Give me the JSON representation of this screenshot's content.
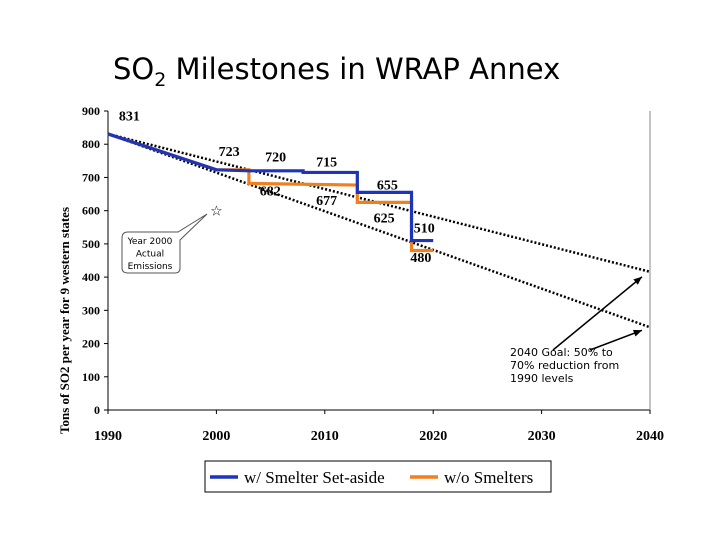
{
  "title": {
    "prefix": "SO",
    "subscript": "2",
    "suffix": " Milestones in WRAP Annex"
  },
  "chart_data": {
    "type": "line",
    "ylabel": "Tons of SO2 per year for 9 western states",
    "xlabel": "",
    "xlim": [
      1990,
      2040
    ],
    "ylim": [
      0,
      900
    ],
    "xticks": [
      1990,
      2000,
      2010,
      2020,
      2030,
      2040
    ],
    "yticks": [
      0,
      100,
      200,
      300,
      400,
      500,
      600,
      700,
      800,
      900
    ],
    "grid": false,
    "legend_position": "bottom",
    "series": [
      {
        "name": "w/ Smelter Set-aside",
        "color": "#1F35B8",
        "x": [
          1990,
          2000,
          2003,
          2008,
          2008,
          2013,
          2013,
          2018,
          2018,
          2020
        ],
        "y": [
          831,
          723,
          720,
          720,
          715,
          715,
          655,
          655,
          510,
          510
        ]
      },
      {
        "name": "w/o Smelters",
        "color": "#F07F1E",
        "x": [
          1990,
          2000,
          2003,
          2003,
          2013,
          2013,
          2018,
          2018,
          2020
        ],
        "y": [
          831,
          723,
          723,
          682,
          677,
          625,
          625,
          480,
          480
        ]
      }
    ],
    "goal_lines": [
      {
        "x": [
          1990,
          2040
        ],
        "y": [
          831,
          416
        ]
      },
      {
        "x": [
          1990,
          2040
        ],
        "y": [
          831,
          249
        ]
      }
    ],
    "data_labels": [
      {
        "text": "831",
        "x": 1991.0,
        "y": 872
      },
      {
        "text": "723",
        "x": 2000.2,
        "y": 765
      },
      {
        "text": "720",
        "x": 2004.5,
        "y": 748
      },
      {
        "text": "715",
        "x": 2009.2,
        "y": 733
      },
      {
        "text": "682",
        "x": 2004.0,
        "y": 645
      },
      {
        "text": "677",
        "x": 2009.2,
        "y": 617
      },
      {
        "text": "655",
        "x": 2014.8,
        "y": 663
      },
      {
        "text": "625",
        "x": 2014.5,
        "y": 565
      },
      {
        "text": "510",
        "x": 2018.2,
        "y": 535
      },
      {
        "text": "480",
        "x": 2017.9,
        "y": 445
      }
    ],
    "annotations": {
      "star_point": {
        "x": 2000,
        "y": 600
      },
      "year2000_lines": [
        "Year 2000",
        "Actual",
        "Emissions"
      ],
      "goal_text": "2040 Goal: 50% to 70% reduction from 1990 levels"
    },
    "colors": {
      "axis": "#000000",
      "goal_line": "#000000"
    }
  }
}
